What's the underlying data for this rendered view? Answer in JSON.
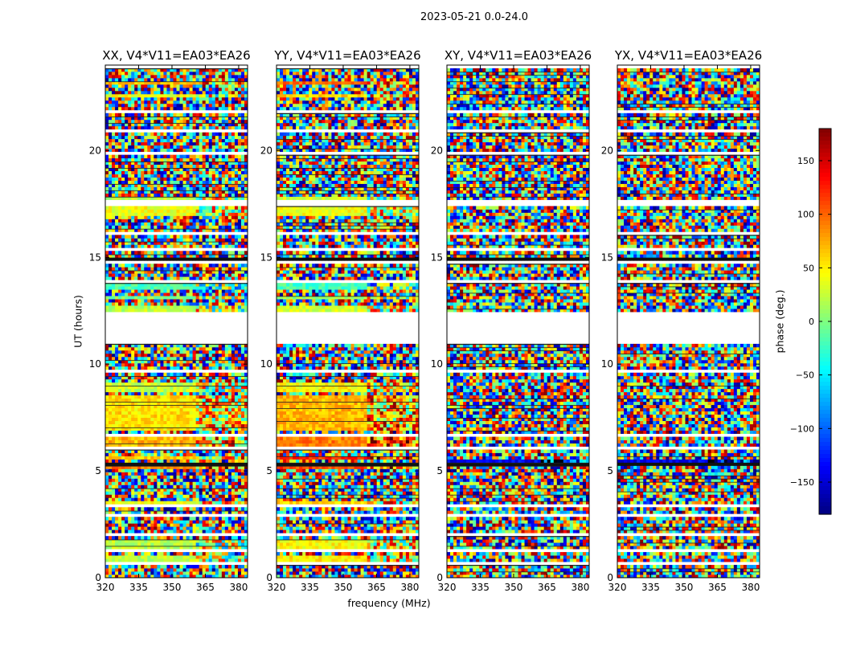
{
  "chart_data": {
    "type": "heatmap",
    "suptitle": "2023-05-21 0.0-24.0",
    "xlabel": "frequency (MHz)",
    "ylabel": "UT (hours)",
    "xlim": [
      320,
      384
    ],
    "ylim": [
      0,
      24
    ],
    "x_ticks": [
      320,
      335,
      350,
      365,
      380
    ],
    "y_ticks": [
      0,
      5,
      10,
      15,
      20
    ],
    "colorbar": {
      "label": "phase (deg.)",
      "range": [
        -180,
        180
      ],
      "ticks": [
        150,
        100,
        50,
        0,
        -50,
        -100,
        -150
      ],
      "tick_labels": [
        "150",
        "100",
        "50",
        "0",
        "−50",
        "−100",
        "−150"
      ],
      "colormap": "jet"
    },
    "panels": [
      {
        "title": "XX, V4*V11=EA03*EA26",
        "correlation": "XX",
        "coherent_bands": [
          {
            "t0": 0.75,
            "t1": 1.05,
            "phase": 20
          },
          {
            "t0": 1.35,
            "t1": 1.85,
            "phase": 20
          },
          {
            "t0": 3.5,
            "t1": 3.6,
            "phase": 40
          },
          {
            "t0": 5.1,
            "t1": 5.4,
            "phase": 90
          },
          {
            "t0": 5.5,
            "t1": 5.65,
            "phase": 60
          },
          {
            "t0": 6.2,
            "t1": 6.6,
            "phase": 70
          },
          {
            "t0": 6.9,
            "t1": 8.6,
            "phase": 55
          },
          {
            "t0": 8.7,
            "t1": 9.1,
            "phase": 25
          },
          {
            "t0": 12.5,
            "t1": 12.8,
            "phase": 20
          },
          {
            "t0": 13.05,
            "t1": 13.2,
            "phase": 0
          },
          {
            "t0": 13.5,
            "t1": 13.75,
            "phase": -20
          },
          {
            "t0": 17.0,
            "t1": 17.4,
            "phase": 40
          },
          {
            "t0": 17.7,
            "t1": 17.9,
            "phase": 20
          },
          {
            "t0": 23.05,
            "t1": 23.25,
            "phase": 70
          },
          {
            "t0": 22.55,
            "t1": 22.7,
            "phase": 40
          }
        ]
      },
      {
        "title": "YY, V4*V11=EA03*EA26",
        "correlation": "YY",
        "coherent_bands": [
          {
            "t0": 0.75,
            "t1": 1.05,
            "phase": 50
          },
          {
            "t0": 1.35,
            "t1": 1.85,
            "phase": 45
          },
          {
            "t0": 3.5,
            "t1": 3.6,
            "phase": 60
          },
          {
            "t0": 5.1,
            "t1": 5.4,
            "phase": 110
          },
          {
            "t0": 5.5,
            "t1": 5.65,
            "phase": 120
          },
          {
            "t0": 6.2,
            "t1": 6.6,
            "phase": 90
          },
          {
            "t0": 6.9,
            "t1": 8.6,
            "phase": 70
          },
          {
            "t0": 8.7,
            "t1": 9.1,
            "phase": 45
          },
          {
            "t0": 12.5,
            "t1": 12.8,
            "phase": 30
          },
          {
            "t0": 13.05,
            "t1": 13.2,
            "phase": 10
          },
          {
            "t0": 13.5,
            "t1": 13.75,
            "phase": -20
          },
          {
            "t0": 17.0,
            "t1": 17.4,
            "phase": 40
          },
          {
            "t0": 17.7,
            "t1": 17.9,
            "phase": 30
          },
          {
            "t0": 23.05,
            "t1": 23.25,
            "phase": 100
          },
          {
            "t0": 22.55,
            "t1": 22.7,
            "phase": 60
          }
        ]
      },
      {
        "title": "XY, V4*V11=EA03*EA26",
        "correlation": "XY",
        "coherent_bands": [
          {
            "t0": 5.3,
            "t1": 5.6,
            "phase": -140
          }
        ]
      },
      {
        "title": "YX, V4*V11=EA03*EA26",
        "correlation": "YX",
        "coherent_bands": [
          {
            "t0": 5.3,
            "t1": 5.6,
            "phase": -140
          }
        ]
      }
    ],
    "flagged_time_ranges": [
      [
        0.0,
        0.05
      ],
      [
        0.65,
        0.75
      ],
      [
        1.2,
        1.35
      ],
      [
        1.95,
        2.1
      ],
      [
        2.9,
        3.0
      ],
      [
        3.35,
        3.45
      ],
      [
        4.6,
        4.7
      ],
      [
        5.65,
        5.75
      ],
      [
        5.95,
        6.1
      ],
      [
        6.6,
        6.75
      ],
      [
        9.6,
        9.7
      ],
      [
        10.75,
        10.85
      ],
      [
        11.0,
        12.5
      ],
      [
        13.8,
        13.9
      ],
      [
        14.7,
        14.8
      ],
      [
        15.3,
        15.45
      ],
      [
        16.1,
        16.2
      ],
      [
        17.45,
        17.65
      ],
      [
        18.4,
        18.5
      ],
      [
        19.85,
        20.0
      ],
      [
        20.9,
        21.0
      ],
      [
        21.75,
        21.95
      ],
      [
        22.3,
        22.4
      ],
      [
        23.8,
        24.0
      ]
    ],
    "dark_time_ranges": [
      [
        14.8,
        15.05
      ],
      [
        5.3,
        5.38
      ],
      [
        10.95,
        11.0
      ],
      [
        6.55,
        6.6
      ]
    ]
  }
}
